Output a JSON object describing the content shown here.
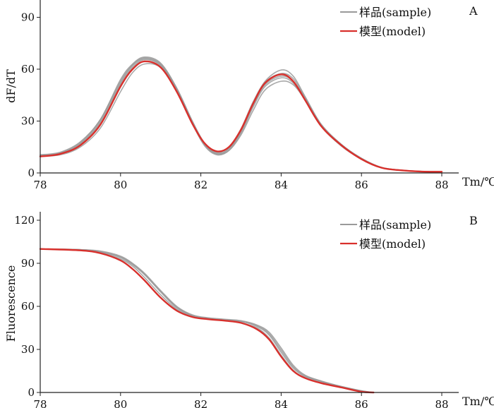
{
  "chart_data": [
    {
      "panel_label": "A",
      "type": "line",
      "ylabel": "dF/dT",
      "xlabel": "Tm/℃",
      "xlim": [
        78,
        88
      ],
      "ylim": [
        0,
        100
      ],
      "xticks": [
        "78",
        "80",
        "82",
        "84",
        "86",
        "88"
      ],
      "yticks": [
        "0",
        "30",
        "60",
        "90"
      ],
      "legend": {
        "position": "top-right",
        "entries": [
          "样品(sample)",
          "模型(model)"
        ]
      },
      "colors": {
        "sample": "#9a9a9a",
        "model": "#d8302c"
      },
      "x": [
        78,
        78.5,
        79,
        79.5,
        80,
        80.3,
        80.6,
        81,
        81.4,
        81.8,
        82.1,
        82.4,
        82.7,
        83.0,
        83.3,
        83.6,
        84.0,
        84.3,
        84.6,
        85.0,
        85.5,
        86.0,
        86.5,
        87.0,
        87.5,
        88.0
      ],
      "series": [
        {
          "name": "模型(model)",
          "role": "model",
          "values": [
            9.5,
            11,
            16,
            28,
            50,
            60,
            64.5,
            61,
            47,
            28,
            17,
            12.5,
            15,
            25,
            40,
            52,
            57,
            53,
            42,
            27,
            16,
            8,
            3,
            1.5,
            0.8,
            0.7
          ]
        },
        {
          "name": "样品(sample)",
          "role": "sample",
          "values": [
            10.5,
            12,
            18,
            31,
            54,
            63,
            67,
            63.5,
            49,
            29,
            16,
            11,
            14,
            24,
            40,
            53,
            59.5,
            56,
            44,
            28,
            16.5,
            8.5,
            3.2,
            1.6,
            0.9,
            0.7
          ]
        },
        {
          "name": "样品(sample)",
          "role": "sample",
          "values": [
            10,
            11.5,
            17,
            30,
            52,
            62,
            66,
            62.5,
            48,
            28,
            15.5,
            10.5,
            13,
            23,
            38,
            50,
            55,
            52,
            42,
            27,
            15.5,
            8,
            3,
            1.5,
            0.8,
            0.7
          ]
        },
        {
          "name": "样品(sample)",
          "role": "sample",
          "values": [
            9.8,
            11,
            16.5,
            29,
            51,
            61,
            65.5,
            62,
            48.5,
            29,
            16.5,
            11.5,
            14,
            24,
            39,
            51,
            56,
            53,
            43,
            27.5,
            16,
            8.2,
            3.1,
            1.5,
            0.8,
            0.7
          ]
        },
        {
          "name": "样品(sample)",
          "role": "sample",
          "values": [
            10.2,
            11.5,
            17.5,
            31,
            53,
            62.5,
            66.5,
            63,
            49,
            29.5,
            17,
            12,
            15,
            25.5,
            41,
            52.5,
            57.5,
            54.5,
            43.5,
            28,
            16.5,
            8.5,
            3.2,
            1.6,
            0.9,
            0.7
          ]
        },
        {
          "name": "样品(sample)",
          "role": "sample",
          "values": [
            9.6,
            10.5,
            15,
            26,
            47,
            58,
            63,
            61,
            48,
            29,
            16.5,
            11,
            13,
            22,
            36,
            48,
            53,
            51,
            42,
            27,
            16,
            8.2,
            3,
            1.5,
            0.8,
            0.7
          ]
        }
      ]
    },
    {
      "panel_label": "B",
      "type": "line",
      "ylabel": "Fluorescence",
      "xlabel": "Tm/℃",
      "xlim": [
        78,
        88
      ],
      "ylim": [
        0,
        120
      ],
      "xticks": [
        "78",
        "80",
        "82",
        "84",
        "86",
        "88"
      ],
      "yticks": [
        "0",
        "30",
        "60",
        "90",
        "120"
      ],
      "legend": {
        "position": "top-right",
        "entries": [
          "样品(sample)",
          "模型(model)"
        ]
      },
      "colors": {
        "sample": "#9a9a9a",
        "model": "#d8302c"
      },
      "x": [
        78,
        79,
        79.5,
        80,
        80.3,
        80.6,
        81,
        81.4,
        81.8,
        82.2,
        82.6,
        83.0,
        83.4,
        83.7,
        84.0,
        84.3,
        84.6,
        85.0,
        85.5,
        86.0,
        86.3
      ],
      "series": [
        {
          "name": "模型(model)",
          "role": "model",
          "values": [
            100,
            99,
            97,
            92,
            86,
            78,
            66,
            57,
            52.5,
            51,
            50,
            48.5,
            44,
            37,
            25,
            15,
            10,
            6.5,
            3.5,
            0.5,
            0
          ]
        },
        {
          "name": "样品(sample)",
          "role": "sample",
          "values": [
            100,
            99.5,
            98,
            94,
            89,
            82,
            70,
            59,
            53.5,
            51.5,
            50.5,
            49.5,
            46,
            40,
            28,
            17,
            11,
            7.5,
            4,
            1,
            0
          ]
        },
        {
          "name": "样品(sample)",
          "role": "sample",
          "values": [
            100,
            99.5,
            98.5,
            95,
            90,
            83,
            71,
            60,
            54,
            52,
            51,
            50,
            47,
            42,
            31,
            19,
            12,
            8,
            4.2,
            1.2,
            0
          ]
        },
        {
          "name": "样品(sample)",
          "role": "sample",
          "values": [
            100,
            99,
            97.5,
            93,
            88,
            80,
            68,
            58,
            53,
            51,
            50,
            48.5,
            45,
            38,
            26,
            15.5,
            10,
            6.8,
            3.8,
            0.8,
            0
          ]
        },
        {
          "name": "样品(sample)",
          "role": "sample",
          "values": [
            100,
            99.5,
            98,
            94.5,
            89.5,
            82.5,
            70.5,
            59.5,
            53.5,
            51.5,
            50.5,
            49.5,
            46.5,
            41,
            29.5,
            18,
            11.5,
            7.8,
            4.1,
            1.1,
            0
          ]
        }
      ]
    }
  ]
}
